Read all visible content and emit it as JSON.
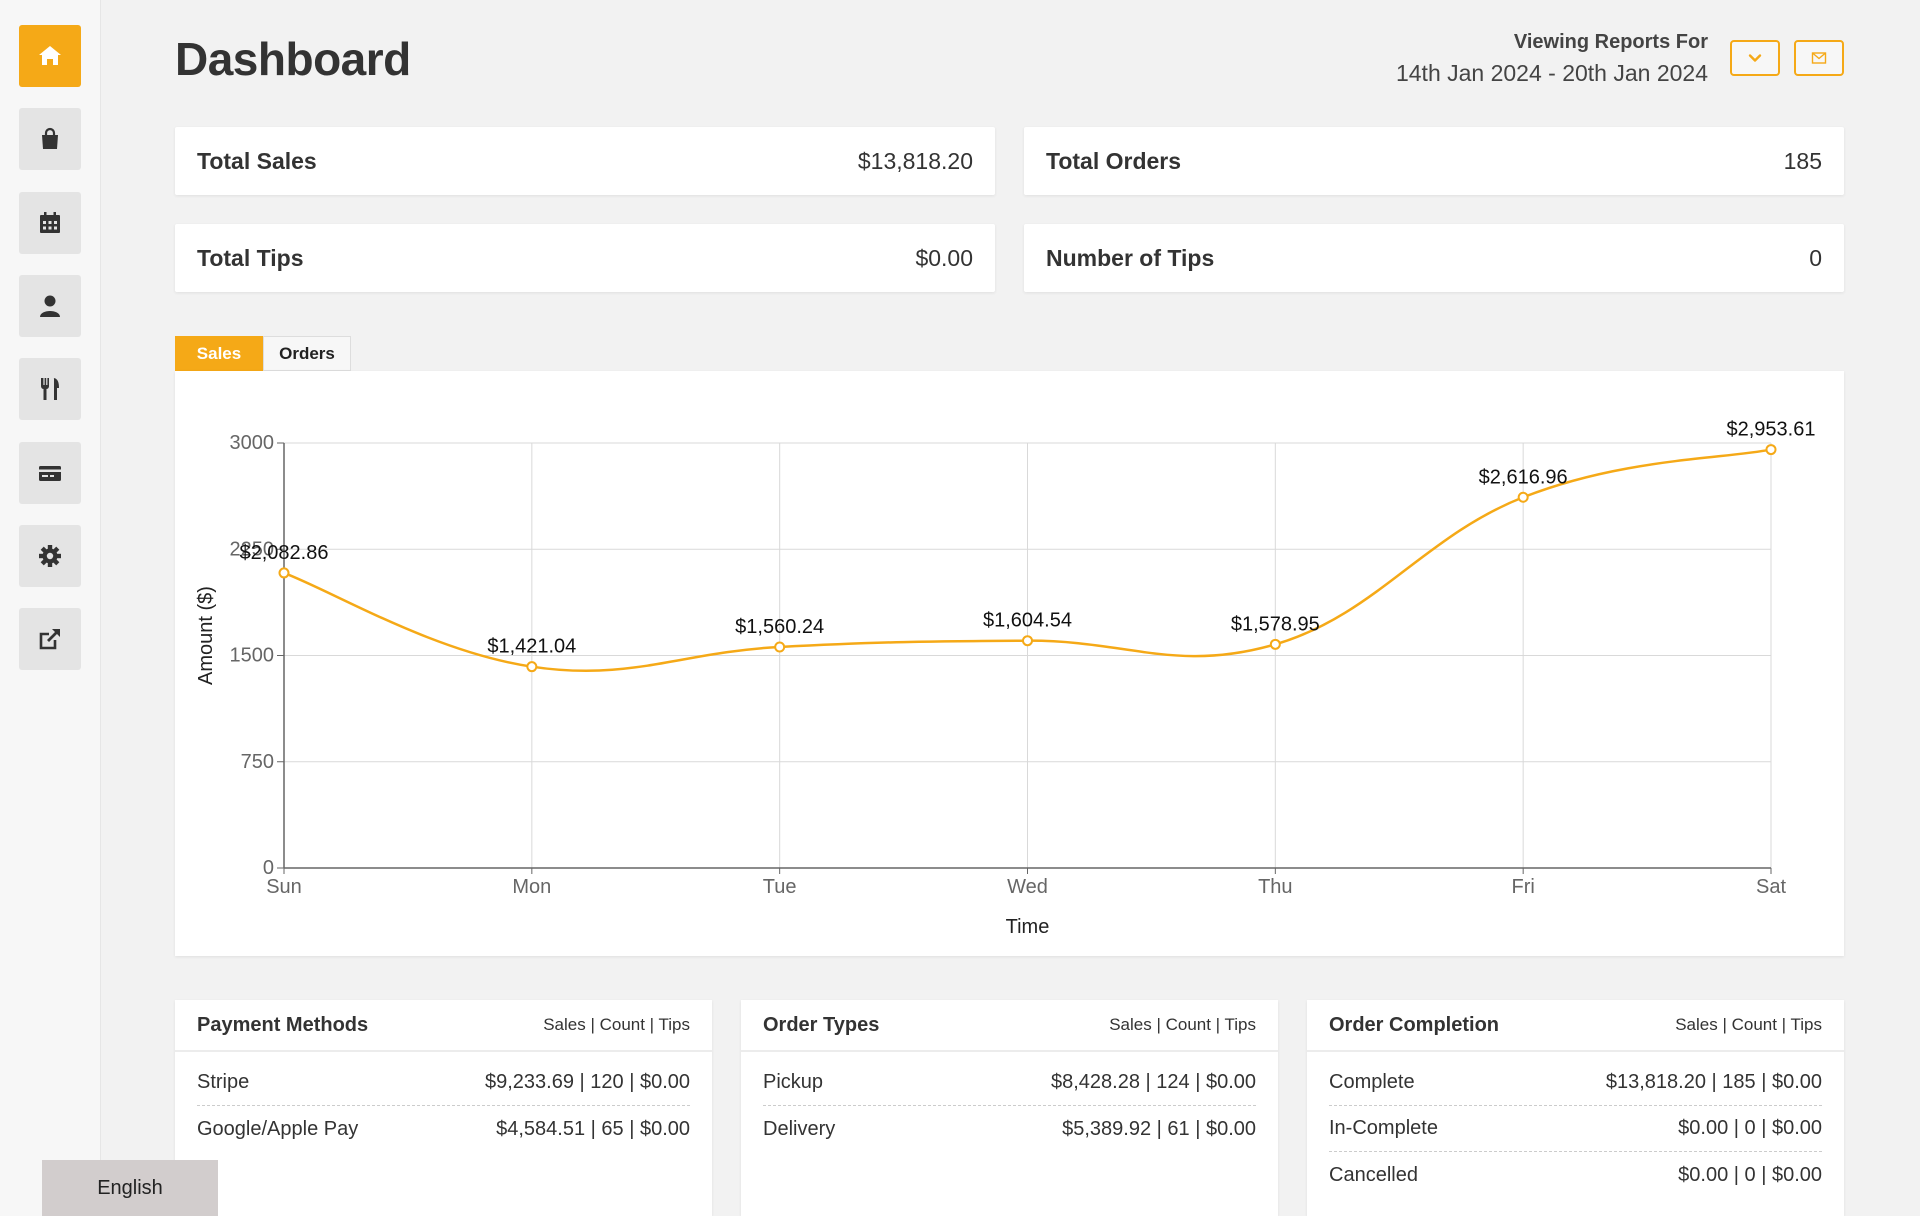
{
  "sidebar": {
    "items": [
      {
        "name": "home-icon",
        "active": true
      },
      {
        "name": "shopping-bag-icon",
        "active": false
      },
      {
        "name": "calendar-icon",
        "active": false
      },
      {
        "name": "user-icon",
        "active": false
      },
      {
        "name": "utensils-icon",
        "active": false
      },
      {
        "name": "card-icon",
        "active": false
      },
      {
        "name": "gear-icon",
        "active": false
      },
      {
        "name": "external-link-icon",
        "active": false
      }
    ]
  },
  "header": {
    "title": "Dashboard",
    "viewing_label": "Viewing Reports For",
    "date_range": "14th Jan 2024 - 20th Jan 2024",
    "dropdown_icon": "chevron-down-icon",
    "email_icon": "envelope-icon"
  },
  "stats": {
    "total_sales": {
      "label": "Total Sales",
      "value": "$13,818.20"
    },
    "total_orders": {
      "label": "Total Orders",
      "value": "185"
    },
    "total_tips": {
      "label": "Total Tips",
      "value": "$0.00"
    },
    "number_of_tips": {
      "label": "Number of Tips",
      "value": "0"
    }
  },
  "tabs": {
    "sales": "Sales",
    "orders": "Orders"
  },
  "colors": {
    "accent": "#f5a917",
    "grid": "#d9d9d9",
    "axis": "#666666"
  },
  "chart_data": {
    "type": "line",
    "categories": [
      "Sun",
      "Mon",
      "Tue",
      "Wed",
      "Thu",
      "Fri",
      "Sat"
    ],
    "values": [
      2082.86,
      1421.04,
      1560.24,
      1604.54,
      1578.95,
      2616.96,
      2953.61
    ],
    "data_labels": [
      "$2,082.86",
      "$1,421.04",
      "$1,560.24",
      "$1,604.54",
      "$1,578.95",
      "$2,616.96",
      "$2,953.61"
    ],
    "xlabel": "Time",
    "ylabel": "Amount ($)",
    "ylim": [
      0,
      3000
    ],
    "yticks": [
      0,
      750,
      1500,
      2250,
      3000
    ],
    "ytick_labels": [
      "0",
      "750",
      "1500",
      "2250",
      "3000"
    ],
    "grid": true
  },
  "panels": [
    {
      "title": "Payment Methods",
      "columns": "Sales | Count | Tips",
      "rows": [
        {
          "label": "Stripe",
          "value": "$9,233.69 | 120 | $0.00"
        },
        {
          "label": "Google/Apple Pay",
          "value": "$4,584.51 | 65 | $0.00"
        }
      ]
    },
    {
      "title": "Order Types",
      "columns": "Sales | Count | Tips",
      "rows": [
        {
          "label": "Pickup",
          "value": "$8,428.28 | 124 | $0.00"
        },
        {
          "label": "Delivery",
          "value": "$5,389.92 | 61 | $0.00"
        }
      ]
    },
    {
      "title": "Order Completion",
      "columns": "Sales | Count | Tips",
      "rows": [
        {
          "label": "Complete",
          "value": "$13,818.20 | 185 | $0.00"
        },
        {
          "label": "In-Complete",
          "value": "$0.00 | 0 | $0.00"
        },
        {
          "label": "Cancelled",
          "value": "$0.00 | 0 | $0.00"
        }
      ]
    }
  ],
  "language": "English"
}
